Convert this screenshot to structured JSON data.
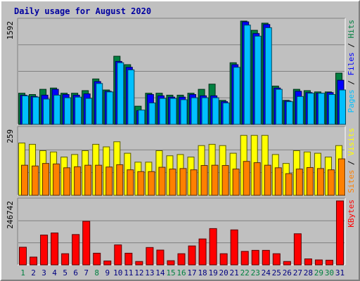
{
  "chart_data": {
    "type": "bar",
    "title": "Daily usage for August 2020",
    "categories": [
      "1",
      "2",
      "3",
      "4",
      "5",
      "6",
      "7",
      "8",
      "9",
      "10",
      "11",
      "12",
      "13",
      "14",
      "15",
      "16",
      "17",
      "18",
      "19",
      "20",
      "21",
      "22",
      "23",
      "24",
      "25",
      "26",
      "27",
      "28",
      "29",
      "30",
      "31"
    ],
    "weekend_days": [
      "1",
      "8",
      "15",
      "16",
      "22",
      "23",
      "29",
      "30"
    ],
    "panels": [
      {
        "name": "pages-files-hits",
        "ymax_label": "1592",
        "ymax": 1592,
        "side_label_parts": [
          "Pages",
          "Files",
          "Hits"
        ],
        "series": [
          {
            "name": "Hits",
            "color": "#008040",
            "values": [
              480,
              460,
              540,
              560,
              480,
              480,
              520,
              700,
              530,
              1050,
              920,
              280,
              480,
              480,
              450,
              450,
              480,
              540,
              620,
              370,
              950,
              1592,
              1450,
              1560,
              590,
              370,
              540,
              520,
              500,
              500,
              790
            ]
          },
          {
            "name": "Files",
            "color": "#0000ff",
            "values": [
              450,
              430,
              450,
              540,
              460,
              450,
              470,
              660,
              510,
              970,
              880,
              210,
              460,
              440,
              420,
              420,
              460,
              440,
              440,
              350,
              920,
              1580,
              1400,
              1540,
              560,
              360,
              510,
              490,
              480,
              490,
              680
            ]
          },
          {
            "name": "Pages",
            "color": "#00c0ff",
            "values": [
              440,
              420,
              390,
              450,
              410,
              420,
              400,
              630,
              500,
              950,
              840,
              220,
              330,
              400,
              400,
              380,
              410,
              410,
              410,
              330,
              880,
              1530,
              1360,
              1490,
              540,
              350,
              430,
              480,
              480,
              460,
              530
            ]
          }
        ]
      },
      {
        "name": "visits-sites",
        "ymax_label": "259",
        "ymax": 259,
        "side_label_parts": [
          "Sites",
          "Visits"
        ],
        "series": [
          {
            "name": "Visits",
            "color": "#ffff00",
            "values": [
              205,
              200,
              175,
              170,
              150,
              160,
              175,
              200,
              190,
              210,
              165,
              130,
              130,
              175,
              155,
              160,
              150,
              195,
              200,
              195,
              165,
              235,
              235,
              235,
              160,
              125,
              175,
              170,
              165,
              150,
              195
            ]
          },
          {
            "name": "Sites",
            "color": "#ff8000",
            "values": [
              118,
              115,
              125,
              123,
              108,
              112,
              118,
              118,
              111,
              120,
              100,
              93,
              93,
              110,
              103,
              105,
              100,
              117,
              118,
              117,
              103,
              133,
              128,
              118,
              108,
              85,
              103,
              109,
              105,
              100,
              143
            ]
          }
        ]
      },
      {
        "name": "kbytes",
        "ymax_label": "246742",
        "ymax": 246742,
        "side_label_parts": [
          "KBytes"
        ],
        "series": [
          {
            "name": "KBytes",
            "color": "#ff0000",
            "values": [
              68000,
              30000,
              115000,
              123000,
              43000,
              117000,
              168000,
              45000,
              15000,
              77000,
              45000,
              13000,
              67000,
              57000,
              16000,
              43000,
              73000,
              100000,
              140000,
              43000,
              135000,
              52000,
              56000,
              56000,
              43000,
              13000,
              120000,
              23000,
              19000,
              18000,
              246742
            ]
          }
        ]
      }
    ]
  }
}
